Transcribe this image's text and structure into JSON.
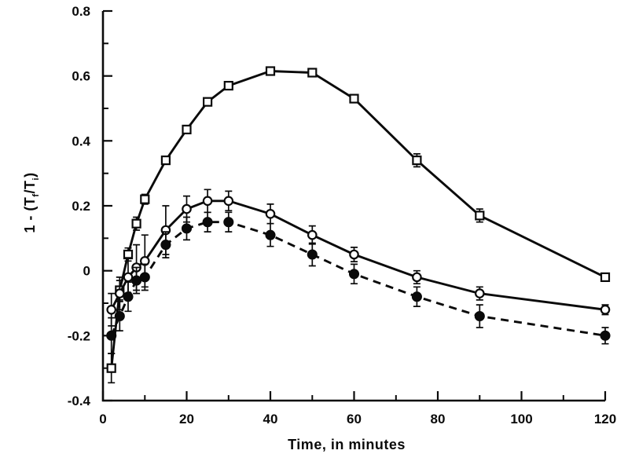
{
  "figure": {
    "background": "#ffffff",
    "ink": "#0a0a0a"
  },
  "chart_data": {
    "type": "line",
    "title": "",
    "xlabel": "Time, in minutes",
    "ylabel": "1 - (Tf/Ti)",
    "ylabel_parts": {
      "prefix": "1 - (T",
      "numerator_sub": "f",
      "mid": "/T",
      "denominator_sub": "i",
      "suffix": ")"
    },
    "xlim": [
      0,
      120
    ],
    "ylim": [
      -0.4,
      0.8
    ],
    "grid": false,
    "legend": "none",
    "error_bars": true,
    "x_major_ticks": [
      0,
      20,
      40,
      60,
      80,
      100,
      120
    ],
    "x_minor_ticks": [
      10,
      30,
      50,
      70,
      90,
      110
    ],
    "x_tick_labels": [
      "0",
      "20",
      "40",
      "60",
      "80",
      "100",
      "120"
    ],
    "y_major_ticks": [
      -0.4,
      -0.2,
      0,
      0.2,
      0.4,
      0.6,
      0.8
    ],
    "y_minor_ticks": [
      -0.3,
      -0.1,
      0.1,
      0.3,
      0.5,
      0.7
    ],
    "y_tick_labels": [
      "-0.4",
      "-0.2",
      "0",
      "0.2",
      "0.4",
      "0.6",
      "0.8"
    ],
    "x": [
      2,
      4,
      6,
      8,
      10,
      15,
      20,
      25,
      30,
      40,
      50,
      60,
      75,
      90,
      120
    ],
    "series": [
      {
        "name": "open-square-solid",
        "marker": "open-square",
        "line": "solid",
        "values": [
          -0.3,
          -0.06,
          0.05,
          0.145,
          0.22,
          0.34,
          0.435,
          0.52,
          0.57,
          0.615,
          0.61,
          0.53,
          0.34,
          0.17,
          -0.02
        ],
        "errors": [
          0.045,
          0.03,
          0.02,
          0.02,
          0.015,
          0.012,
          0.012,
          0.012,
          0.012,
          0.01,
          0.01,
          0.012,
          0.02,
          0.02,
          0.012
        ]
      },
      {
        "name": "open-circle-solid",
        "marker": "open-circle",
        "line": "solid",
        "values": [
          -0.12,
          -0.07,
          -0.02,
          0.01,
          0.03,
          0.125,
          0.19,
          0.215,
          0.215,
          0.175,
          0.11,
          0.05,
          -0.02,
          -0.07,
          -0.12
        ],
        "errors": [
          0.05,
          0.05,
          0.06,
          0.07,
          0.08,
          0.075,
          0.04,
          0.035,
          0.03,
          0.03,
          0.028,
          0.022,
          0.02,
          0.02,
          0.015
        ]
      },
      {
        "name": "filled-circle-dashed",
        "marker": "filled-circle",
        "line": "dashed",
        "values": [
          -0.2,
          -0.14,
          -0.08,
          -0.03,
          -0.02,
          0.08,
          0.13,
          0.15,
          0.15,
          0.11,
          0.05,
          -0.01,
          -0.08,
          -0.14,
          -0.2
        ],
        "errors": [
          0.055,
          0.045,
          0.045,
          0.04,
          0.04,
          0.04,
          0.035,
          0.03,
          0.03,
          0.035,
          0.035,
          0.03,
          0.03,
          0.035,
          0.025
        ]
      }
    ]
  }
}
